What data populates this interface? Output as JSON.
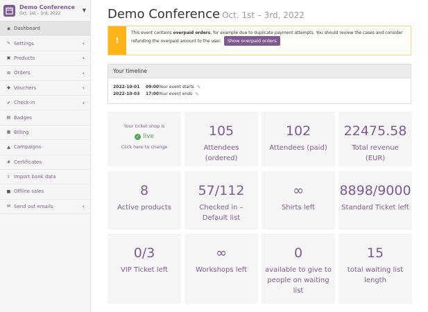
{
  "org": {
    "name": "Demo Conference",
    "dates": "Oct. 1st – 3rd, 2022"
  },
  "nav": [
    {
      "label": "Dashboard",
      "icon": "dashboard-icon",
      "glyph": "◉",
      "chevron": false,
      "active": true
    },
    {
      "label": "Settings",
      "icon": "wrench-icon",
      "glyph": "✎",
      "chevron": true
    },
    {
      "label": "Products",
      "icon": "ticket-icon",
      "glyph": "▣",
      "chevron": true
    },
    {
      "label": "Orders",
      "icon": "cart-icon",
      "glyph": "⊞",
      "chevron": true
    },
    {
      "label": "Vouchers",
      "icon": "tags-icon",
      "glyph": "◆",
      "chevron": true
    },
    {
      "label": "Check-in",
      "icon": "check-icon",
      "glyph": "✔",
      "chevron": true
    },
    {
      "label": "Badges",
      "icon": "badge-icon",
      "glyph": "▤",
      "chevron": false
    },
    {
      "label": "Billing",
      "icon": "billing-icon",
      "glyph": "▦",
      "chevron": false
    },
    {
      "label": "Campaigns",
      "icon": "chart-icon",
      "glyph": "▲",
      "chevron": false
    },
    {
      "label": "Certificates",
      "icon": "certificate-icon",
      "glyph": "◈",
      "chevron": false
    },
    {
      "label": "Import bank data",
      "icon": "upload-icon",
      "glyph": "⇧",
      "chevron": false
    },
    {
      "label": "Offline sales",
      "icon": "briefcase-icon",
      "glyph": "■",
      "chevron": false
    },
    {
      "label": "Send out emails",
      "icon": "envelope-icon",
      "glyph": "✉",
      "chevron": true
    }
  ],
  "header": {
    "title": "Demo Conference",
    "dates": "Oct. 1st – 3rd, 2022"
  },
  "alert": {
    "icon": "warning-icon",
    "text_before": "This event contains ",
    "text_bold": "overpaid orders",
    "text_after": ", for example due to duplicate payment attempts. You should review the cases and consider refunding the overpaid amount to the user.",
    "button": "Show overpaid orders"
  },
  "timeline": {
    "title": "Your timeline",
    "rows": [
      {
        "date": "2022-10-01",
        "time": "09:00",
        "label": "Your event starts"
      },
      {
        "date": "2022-10-03",
        "time": "17:00",
        "label": "Your event ends"
      }
    ]
  },
  "shop": {
    "line1": "Your ticket shop is",
    "status": "live",
    "line2": "Click here to change"
  },
  "widgets": [
    {
      "value": "105",
      "label": "Attendees (ordered)"
    },
    {
      "value": "102",
      "label": "Attendees (paid)"
    },
    {
      "value": "22475.58",
      "label": "Total revenue (EUR)"
    },
    {
      "value": "8",
      "label": "Active products"
    },
    {
      "value": "57/112",
      "label": "Checked in – Default list"
    },
    {
      "value": "∞",
      "label": "Shirts left"
    },
    {
      "value": "8898/9000",
      "label": "Standard Ticket left"
    },
    {
      "value": "0/3",
      "label": "VIP Ticket left"
    },
    {
      "value": "∞",
      "label": "Workshops left"
    },
    {
      "value": "0",
      "label": "available to give to people on waiting list"
    },
    {
      "value": "15",
      "label": "total waiting list length"
    }
  ],
  "colors": {
    "brand": "#7f5a91",
    "warning": "#ffb419",
    "live": "#5aa05a"
  }
}
